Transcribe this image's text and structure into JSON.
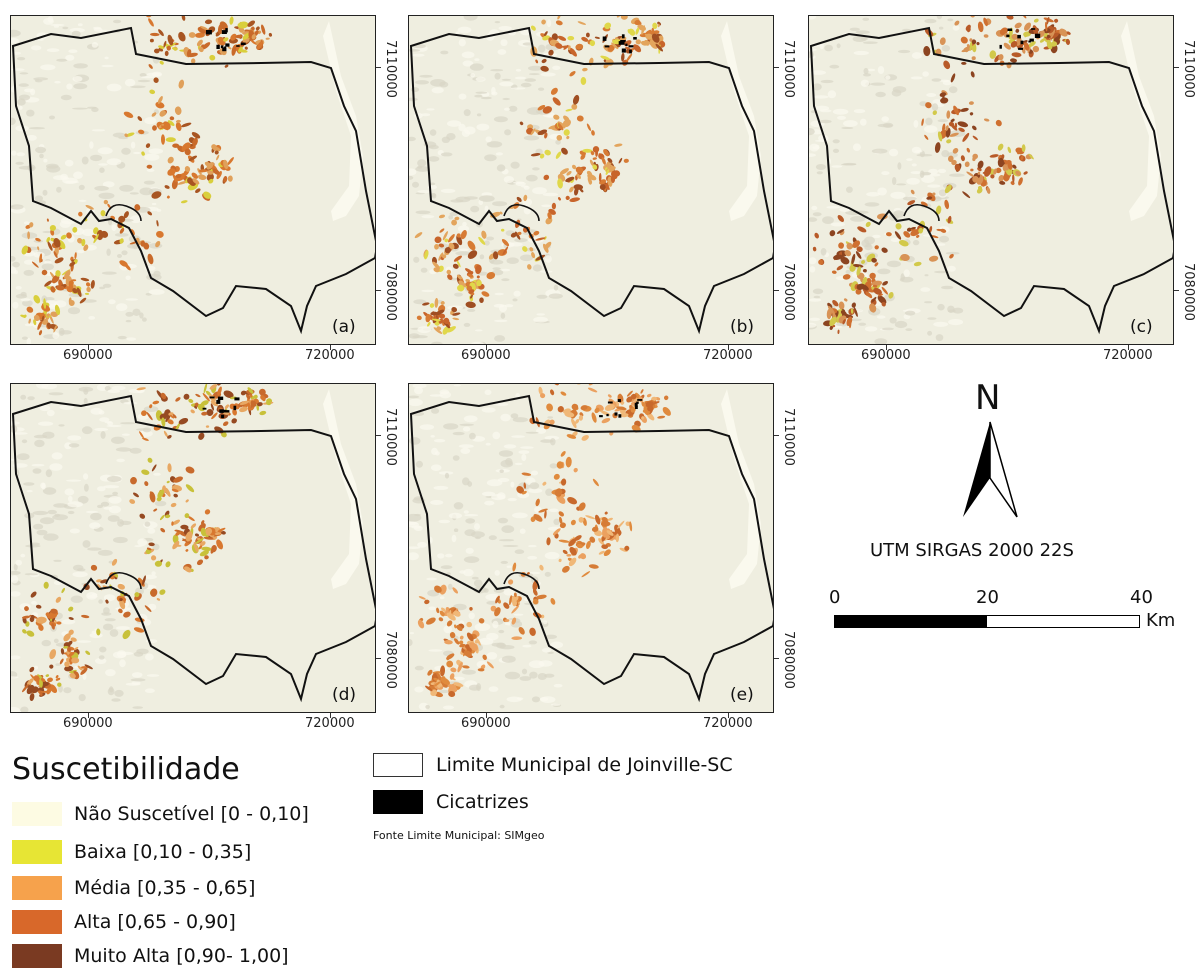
{
  "panels": [
    {
      "label": "(a)",
      "x_ticks": [
        "690000",
        "720000"
      ],
      "y_ticks": [
        "7110000",
        "7080000"
      ]
    },
    {
      "label": "(b)",
      "x_ticks": [
        "690000",
        "720000"
      ],
      "y_ticks": [
        "7110000",
        "7080000"
      ]
    },
    {
      "label": "(c)",
      "x_ticks": [
        "690000",
        "720000"
      ],
      "y_ticks": [
        "7110000",
        "7080000"
      ]
    },
    {
      "label": "(d)",
      "x_ticks": [
        "690000",
        "720000"
      ],
      "y_ticks": [
        "7110000",
        "7080000"
      ]
    },
    {
      "label": "(e)",
      "x_ticks": [
        "690000",
        "720000"
      ],
      "y_ticks": [
        "7110000",
        "7080000"
      ]
    }
  ],
  "legend": {
    "title": "Suscetibilidade",
    "classes": [
      {
        "label": "Não Suscetível [0 - 0,10]",
        "color": "#fdfbe3"
      },
      {
        "label": "Baixa [0,10 - 0,35]",
        "color": "#e7e534"
      },
      {
        "label": "Média [0,35 - 0,65]",
        "color": "#f6a24c"
      },
      {
        "label": "Alta [0,65 - 0,90]",
        "color": "#d8682a"
      },
      {
        "label": "Muito Alta [0,90- 1,00]",
        "color": "#7a3a22"
      }
    ],
    "boundary_label": "Limite Municipal de Joinville-SC",
    "scars_label": "Cicatrizes",
    "source": "Fonte Limite Municipal: SIMgeo"
  },
  "north_arrow": {
    "letter": "N",
    "icon": "north-arrow-icon"
  },
  "projection": "UTM SIRGAS 2000 22S",
  "scalebar": {
    "labels": [
      "0",
      "20",
      "40"
    ],
    "unit": "Km"
  },
  "colors": {
    "background": "#efeee0",
    "boundary": "#111111",
    "scars": "#000000"
  }
}
